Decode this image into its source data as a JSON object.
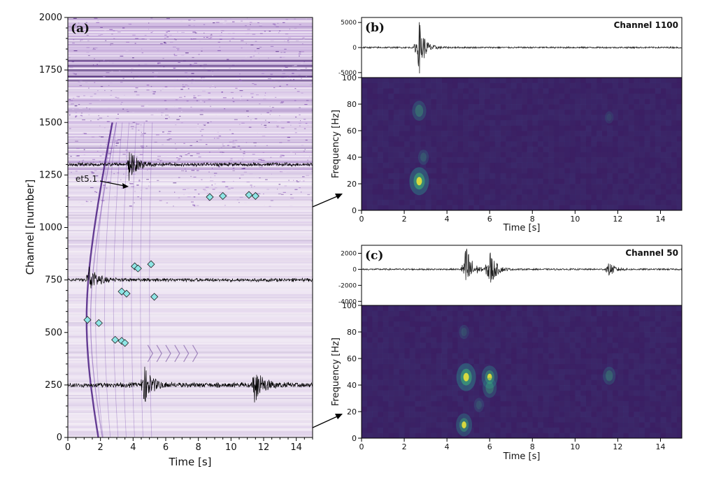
{
  "chart_data": [
    {
      "type": "scatter",
      "panel_label": "(a)",
      "xlabel": "Time [s]",
      "ylabel": "Channel [number]",
      "xlim": [
        0,
        15
      ],
      "ylim": [
        0,
        2000
      ],
      "xticks": [
        0,
        2,
        4,
        6,
        8,
        10,
        12,
        14
      ],
      "yticks": [
        0,
        250,
        500,
        750,
        1000,
        1250,
        1500,
        1750,
        2000
      ],
      "background": "purple-white DAS waterfall image",
      "annotation": {
        "text": "et5.1",
        "x": 3.7,
        "y": 1220
      },
      "trace_channels": [
        1300,
        750,
        250
      ],
      "markers": {
        "x": [
          1.2,
          1.9,
          2.9,
          3.3,
          3.5,
          3.3,
          3.6,
          5.3,
          4.1,
          4.3,
          5.1,
          8.7,
          9.5,
          11.1,
          11.5
        ],
        "y": [
          560,
          545,
          465,
          460,
          450,
          695,
          685,
          670,
          815,
          805,
          825,
          1145,
          1150,
          1155,
          1150
        ]
      },
      "marker_color": "#8ee6e6"
    },
    {
      "type": "line",
      "panel_label": "(b)",
      "title": "Channel 1100",
      "waveform": {
        "ylim": [
          -6000,
          6000
        ],
        "yticks": [
          5000,
          0,
          -5000
        ],
        "events": [
          2.7
        ]
      },
      "spectrogram": {
        "type": "heatmap",
        "xlabel": "Time [s]",
        "ylabel": "Frequency [Hz]",
        "xlim": [
          0,
          15
        ],
        "ylim": [
          0,
          100
        ],
        "xticks": [
          0,
          2,
          4,
          6,
          8,
          10,
          12,
          14
        ],
        "yticks": [
          0,
          20,
          40,
          60,
          80,
          100
        ],
        "hotspots": [
          {
            "t": 2.7,
            "f": 22,
            "level": 1.0
          },
          {
            "t": 2.7,
            "f": 75,
            "level": 0.6
          },
          {
            "t": 2.9,
            "f": 40,
            "level": 0.35
          },
          {
            "t": 11.6,
            "f": 70,
            "level": 0.2
          }
        ]
      }
    },
    {
      "type": "line",
      "panel_label": "(c)",
      "title": "Channel  50",
      "waveform": {
        "ylim": [
          -4500,
          3000
        ],
        "yticks": [
          2000,
          0,
          -2000,
          -4000
        ],
        "events": [
          4.9,
          6.0,
          11.6
        ]
      },
      "spectrogram": {
        "type": "heatmap",
        "xlabel": "Time [s]",
        "ylabel": "Frequency [Hz]",
        "xlim": [
          0,
          15
        ],
        "ylim": [
          0,
          100
        ],
        "xticks": [
          0,
          2,
          4,
          6,
          8,
          10,
          12,
          14
        ],
        "yticks": [
          0,
          20,
          40,
          60,
          80,
          100
        ],
        "hotspots": [
          {
            "t": 4.9,
            "f": 46,
            "level": 1.0
          },
          {
            "t": 4.8,
            "f": 10,
            "level": 0.75
          },
          {
            "t": 6.0,
            "f": 46,
            "level": 0.75
          },
          {
            "t": 6.0,
            "f": 38,
            "level": 0.6
          },
          {
            "t": 4.8,
            "f": 80,
            "level": 0.3
          },
          {
            "t": 11.6,
            "f": 47,
            "level": 0.5
          },
          {
            "t": 5.5,
            "f": 25,
            "level": 0.3
          }
        ]
      }
    }
  ]
}
